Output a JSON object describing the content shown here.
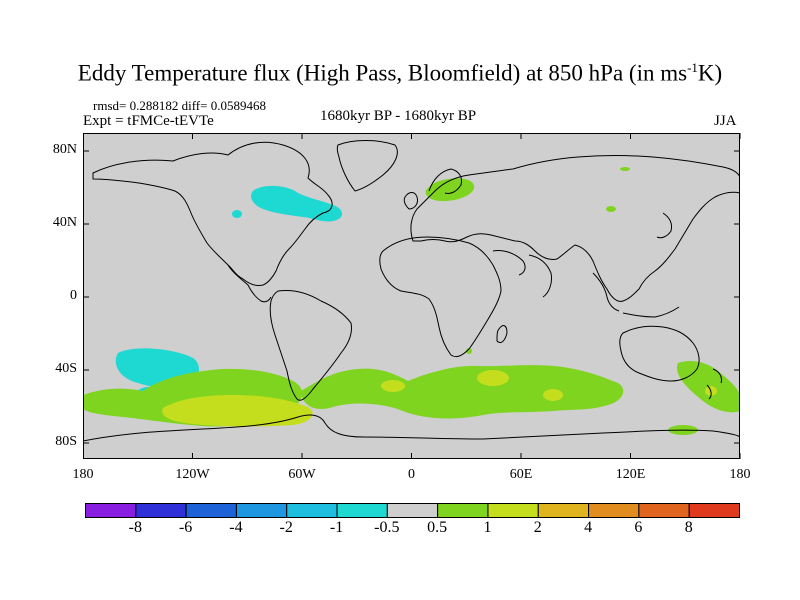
{
  "title": {
    "main": "Eddy Temperature flux (High Pass, Bloomfield) at 850 hPa (in ms",
    "sup": "-1",
    "end": "K)"
  },
  "stats": "rmsd= 0.288182 diff= 0.0589468",
  "experiment": "Expt = tFMCe-tEVTe",
  "period": "1680kyr BP - 1680kyr BP",
  "season": "JJA",
  "map": {
    "background_color": "#cfcfcf",
    "lat_ticks": [
      "80N",
      "40N",
      "0",
      "40S",
      "80S"
    ],
    "lon_ticks": [
      "180",
      "120W",
      "60W",
      "0",
      "60E",
      "120E",
      "180"
    ]
  },
  "colorbar": {
    "labels": [
      "-8",
      "-6",
      "-4",
      "-2",
      "-1",
      "-0.5",
      "0.5",
      "1",
      "2",
      "4",
      "6",
      "8"
    ],
    "colors": [
      "#8a1ee0",
      "#3030d8",
      "#1e62d8",
      "#1e96e0",
      "#1ebee0",
      "#1ed8d2",
      "#cfcfcf",
      "#7ed41e",
      "#c4de1e",
      "#e0b41e",
      "#e08c1e",
      "#e0641e",
      "#e03a1e"
    ]
  }
}
